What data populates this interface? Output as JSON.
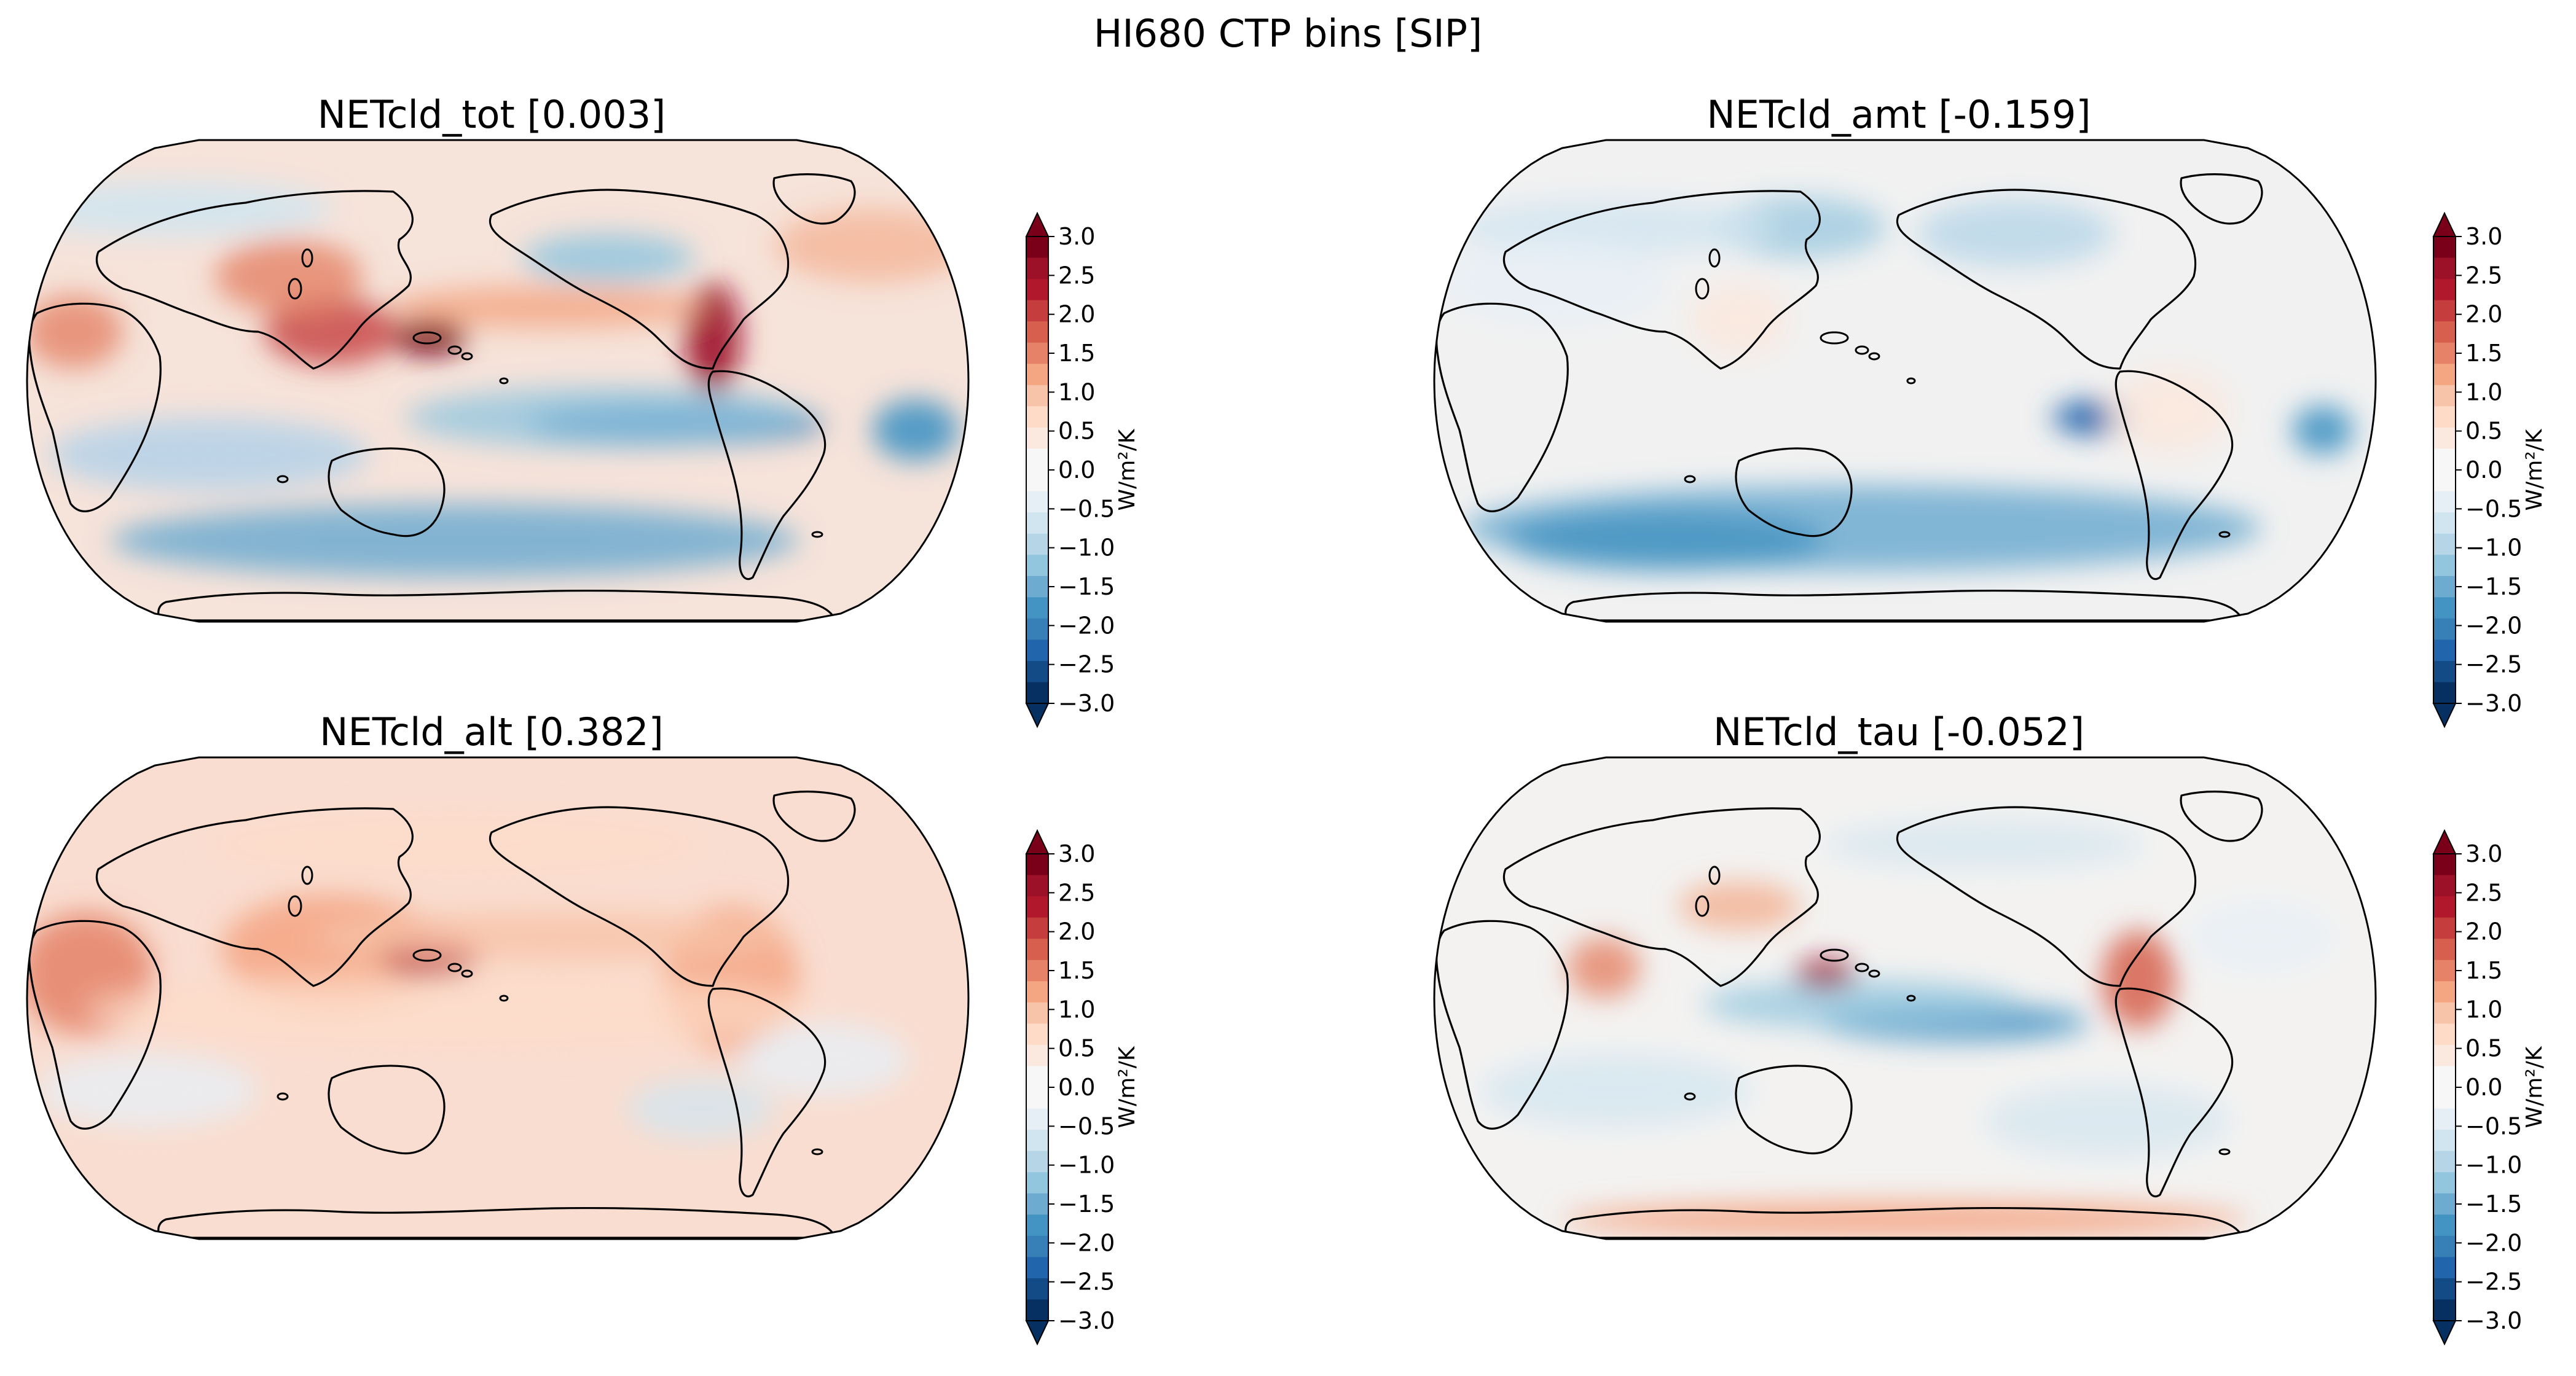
{
  "figure": {
    "title": "HI680 CTP bins [SIP]"
  },
  "colorbar": {
    "ticks": [
      "3.0",
      "2.5",
      "2.0",
      "1.5",
      "1.0",
      "0.5",
      "0.0",
      "−0.5",
      "−1.0",
      "−1.5",
      "−2.0",
      "−2.5",
      "−3.0"
    ],
    "unit_label": "W/m²/K",
    "vmin": -3.0,
    "vmax": 3.0,
    "colors_top_to_bottom": [
      "#7a0019",
      "#9c1127",
      "#b2182b",
      "#c53e3d",
      "#d6604d",
      "#e58267",
      "#f4a582",
      "#f8c4a9",
      "#fddbc7",
      "#fbe9df",
      "#f7f7f7",
      "#f7f7f7",
      "#e7eff6",
      "#d1e5f0",
      "#b6d6e8",
      "#92c5de",
      "#6eabd0",
      "#4393c3",
      "#3780b7",
      "#2166ac",
      "#134b87",
      "#053061"
    ]
  },
  "panels": [
    {
      "title": "NETcld_tot [0.003]",
      "mean": 0.003,
      "ocean_color": "#f6e3da"
    },
    {
      "title": "NETcld_amt [-0.159]",
      "mean": -0.159,
      "ocean_color": "#f1f1f1"
    },
    {
      "title": "NETcld_alt [0.382]",
      "mean": 0.382,
      "ocean_color": "#f9ddd0"
    },
    {
      "title": "NETcld_tau [-0.052]",
      "mean": -0.052,
      "ocean_color": "#f3f2f1"
    }
  ],
  "chart_data": {
    "type": "heatmap",
    "title": "HI680 CTP bins [SIP]",
    "projection": "Robinson, Pacific-centred",
    "colorbar_label": "W/m²/K",
    "range": [
      -3.0,
      3.0
    ],
    "panels": [
      "NETcld_tot [0.003]",
      "NETcld_amt [-0.159]",
      "NETcld_alt [0.382]",
      "NETcld_tau [-0.052]"
    ]
  }
}
